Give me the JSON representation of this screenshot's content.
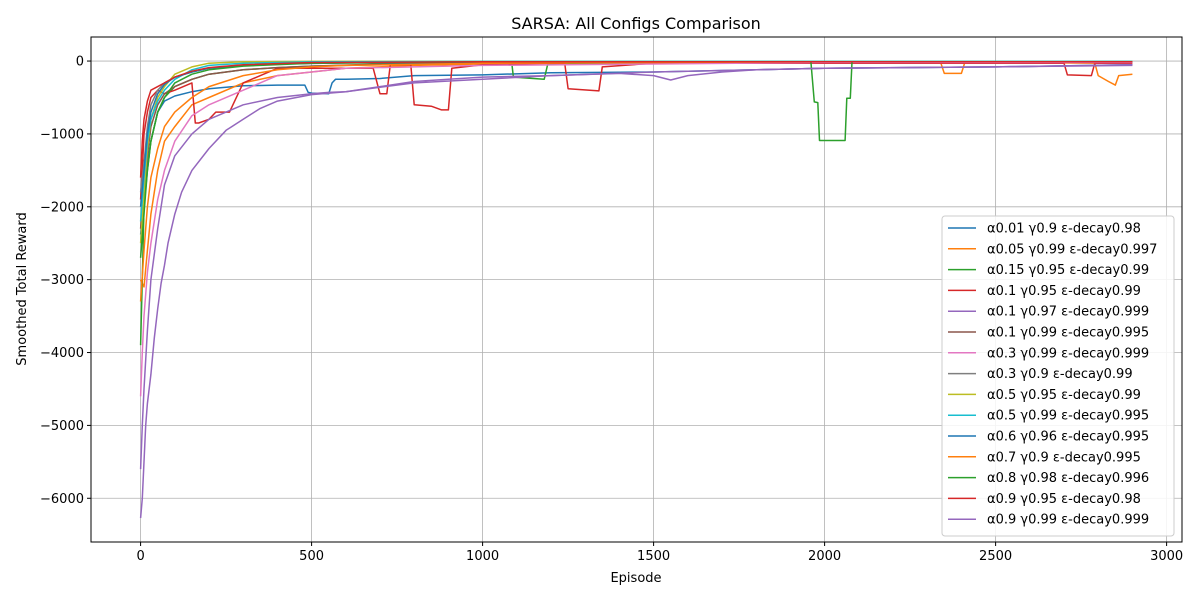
{
  "chart_data": {
    "type": "line",
    "title": "SARSA: All Configs Comparison",
    "xlabel": "Episode",
    "ylabel": "Smoothed Total Reward",
    "xlim": [
      -145,
      3045
    ],
    "ylim": [
      -6600,
      330
    ],
    "xticks": [
      0,
      500,
      1000,
      1500,
      2000,
      2500,
      3000
    ],
    "yticks": [
      -6000,
      -5000,
      -4000,
      -3000,
      -2000,
      -1000,
      0
    ],
    "xtick_labels": [
      "0",
      "500",
      "1000",
      "1500",
      "2000",
      "2500",
      "3000"
    ],
    "ytick_labels": [
      "−6000",
      "−5000",
      "−4000",
      "−3000",
      "−2000",
      "−1000",
      "0"
    ],
    "grid": true,
    "legend_position": "lower-right",
    "series": [
      {
        "name": "α0.01 γ0.9 ε-decay0.98",
        "color": "#1f77b4",
        "x": [
          0,
          5,
          10,
          20,
          30,
          50,
          70,
          100,
          150,
          200,
          300,
          400,
          480,
          490,
          500,
          550,
          560,
          570,
          600,
          700,
          800,
          1000,
          1200,
          1500,
          1800,
          2000,
          2500,
          2900
        ],
        "y": [
          -2380,
          -2200,
          -1900,
          -1400,
          -1100,
          -700,
          -550,
          -480,
          -420,
          -380,
          -340,
          -330,
          -330,
          -430,
          -440,
          -450,
          -300,
          -250,
          -250,
          -240,
          -200,
          -190,
          -160,
          -150,
          -120,
          -100,
          -80,
          -50
        ]
      },
      {
        "name": "α0.05 γ0.99 ε-decay0.997",
        "color": "#ff7f0e",
        "x": [
          0,
          10,
          20,
          30,
          50,
          70,
          100,
          150,
          200,
          300,
          400,
          500,
          600,
          800,
          1000,
          1500,
          2000,
          2340,
          2350,
          2400,
          2410,
          2500,
          2790,
          2800,
          2830,
          2850,
          2860,
          2900
        ],
        "y": [
          -3000,
          -3100,
          -2600,
          -2100,
          -1500,
          -1100,
          -900,
          -600,
          -500,
          -300,
          -200,
          -150,
          -100,
          -60,
          -40,
          -20,
          -30,
          -30,
          -170,
          -170,
          -20,
          -20,
          -30,
          -200,
          -280,
          -330,
          -200,
          -180
        ]
      },
      {
        "name": "α0.15 γ0.95 ε-decay0.99",
        "color": "#2ca02c",
        "x": [
          0,
          5,
          10,
          20,
          30,
          50,
          70,
          100,
          150,
          200,
          300,
          400,
          500,
          1000,
          1085,
          1090,
          1180,
          1190,
          1500,
          2000,
          2500,
          2900
        ],
        "y": [
          -3900,
          -3000,
          -2000,
          -1500,
          -1100,
          -700,
          -500,
          -350,
          -250,
          -180,
          -120,
          -90,
          -70,
          -20,
          -20,
          -220,
          -250,
          -50,
          -20,
          -10,
          -10,
          -10
        ]
      },
      {
        "name": "α0.1 γ0.95 ε-decay0.99",
        "color": "#d62728",
        "x": [
          0,
          5,
          10,
          20,
          30,
          50,
          70,
          100,
          150,
          160,
          170,
          200,
          220,
          260,
          300,
          400,
          600,
          680,
          700,
          720,
          730,
          790,
          800,
          850,
          880,
          900,
          910,
          1000,
          1200,
          1240,
          1250,
          1340,
          1350,
          1500,
          2000,
          2500,
          2700,
          2710,
          2780,
          2790,
          2900
        ],
        "y": [
          -1900,
          -1500,
          -1000,
          -700,
          -500,
          -400,
          -450,
          -400,
          -300,
          -850,
          -850,
          -800,
          -700,
          -700,
          -300,
          -100,
          -100,
          -100,
          -450,
          -450,
          -50,
          -50,
          -600,
          -620,
          -670,
          -670,
          -100,
          -50,
          -30,
          -30,
          -380,
          -410,
          -80,
          -30,
          -30,
          -30,
          -30,
          -190,
          -200,
          -30,
          -30
        ]
      },
      {
        "name": "α0.1 γ0.97 ε-decay0.999",
        "color": "#9467bd",
        "x": [
          0,
          5,
          10,
          20,
          30,
          50,
          70,
          100,
          150,
          200,
          300,
          400,
          500,
          550,
          600,
          700,
          800,
          900,
          1000,
          1200,
          1400,
          1500,
          1550,
          1600,
          1700,
          1800,
          2000,
          2200,
          2500,
          2700,
          2900
        ],
        "y": [
          -5600,
          -5000,
          -4500,
          -3700,
          -3000,
          -2300,
          -1700,
          -1300,
          -1000,
          -800,
          -600,
          -500,
          -450,
          -430,
          -420,
          -350,
          -280,
          -250,
          -220,
          -200,
          -170,
          -200,
          -260,
          -200,
          -150,
          -120,
          -100,
          -90,
          -80,
          -70,
          -60
        ]
      },
      {
        "name": "α0.1 γ0.99 ε-decay0.995",
        "color": "#8c564b",
        "x": [
          0,
          10,
          20,
          30,
          50,
          70,
          100,
          150,
          200,
          300,
          400,
          500,
          700,
          1000,
          1500,
          2000,
          2500,
          2900
        ],
        "y": [
          -2300,
          -1700,
          -1300,
          -900,
          -600,
          -450,
          -350,
          -250,
          -180,
          -120,
          -90,
          -70,
          -40,
          -20,
          -10,
          -10,
          -10,
          -10
        ]
      },
      {
        "name": "α0.3 γ0.99 ε-decay0.999",
        "color": "#e377c2",
        "x": [
          0,
          5,
          10,
          20,
          30,
          50,
          70,
          100,
          150,
          200,
          300,
          400,
          500,
          600,
          800,
          1000,
          1500,
          2000,
          2500,
          2900
        ],
        "y": [
          -4600,
          -4000,
          -3500,
          -2900,
          -2500,
          -1900,
          -1500,
          -1100,
          -750,
          -600,
          -400,
          -200,
          -150,
          -100,
          -80,
          -60,
          -40,
          -20,
          -20,
          -20
        ]
      },
      {
        "name": "α0.3 γ0.9 ε-decay0.99",
        "color": "#7f7f7f",
        "x": [
          0,
          10,
          20,
          30,
          50,
          70,
          100,
          150,
          200,
          300,
          400,
          500,
          700,
          1000,
          1500,
          2000,
          2500,
          2900
        ],
        "y": [
          -1800,
          -1400,
          -900,
          -600,
          -400,
          -300,
          -220,
          -150,
          -100,
          -60,
          -40,
          -30,
          -20,
          -10,
          -10,
          -10,
          -10,
          -10
        ]
      },
      {
        "name": "α0.5 γ0.95 ε-decay0.99",
        "color": "#bcbd22",
        "x": [
          0,
          10,
          20,
          30,
          50,
          70,
          100,
          150,
          200,
          300,
          500,
          1000,
          1500,
          2000,
          2500,
          2900
        ],
        "y": [
          -2500,
          -1800,
          -1200,
          -800,
          -500,
          -350,
          -180,
          -80,
          -30,
          -10,
          -5,
          -5,
          -5,
          -5,
          -5,
          -5
        ]
      },
      {
        "name": "α0.5 γ0.99 ε-decay0.995",
        "color": "#17becf",
        "x": [
          0,
          10,
          20,
          30,
          50,
          70,
          100,
          150,
          200,
          300,
          500,
          1000,
          1500,
          2000,
          2500,
          2900
        ],
        "y": [
          -2200,
          -1600,
          -1100,
          -800,
          -550,
          -400,
          -250,
          -120,
          -60,
          -30,
          -10,
          -5,
          -5,
          -5,
          -5,
          -5
        ]
      },
      {
        "name": "α0.6 γ0.96 ε-decay0.995",
        "color": "#1f77b4",
        "x": [
          0,
          10,
          20,
          30,
          50,
          70,
          100,
          150,
          200,
          300,
          400,
          600,
          1000,
          1500,
          2000,
          2500,
          2900
        ],
        "y": [
          -2000,
          -1500,
          -1000,
          -700,
          -450,
          -320,
          -220,
          -150,
          -100,
          -60,
          -40,
          -25,
          -15,
          -10,
          -10,
          -10,
          -10
        ]
      },
      {
        "name": "α0.7 γ0.9 ε-decay0.995",
        "color": "#ff7f0e",
        "x": [
          0,
          10,
          20,
          30,
          50,
          70,
          100,
          150,
          200,
          300,
          400,
          500,
          600,
          1000,
          1500,
          2000,
          2500,
          2900
        ],
        "y": [
          -3300,
          -2600,
          -2000,
          -1600,
          -1200,
          -900,
          -700,
          -500,
          -350,
          -200,
          -120,
          -80,
          -60,
          -30,
          -20,
          -10,
          -10,
          -10
        ]
      },
      {
        "name": "α0.8 γ0.98 ε-decay0.996",
        "color": "#2ca02c",
        "x": [
          0,
          10,
          20,
          30,
          50,
          70,
          100,
          150,
          200,
          300,
          500,
          1000,
          1500,
          1960,
          1970,
          1980,
          1985,
          2060,
          2065,
          2075,
          2080,
          2500,
          2900
        ],
        "y": [
          -2700,
          -2100,
          -1500,
          -1100,
          -700,
          -500,
          -300,
          -180,
          -120,
          -70,
          -30,
          -10,
          -10,
          -10,
          -560,
          -570,
          -1090,
          -1090,
          -510,
          -510,
          -10,
          -10,
          -10
        ]
      },
      {
        "name": "α0.9 γ0.95 ε-decay0.98",
        "color": "#d62728",
        "x": [
          0,
          5,
          10,
          20,
          30,
          50,
          70,
          100,
          150,
          200,
          300,
          500,
          1000,
          1500,
          2000,
          2500,
          2900
        ],
        "y": [
          -1600,
          -1100,
          -800,
          -550,
          -400,
          -350,
          -300,
          -220,
          -140,
          -90,
          -50,
          -20,
          -10,
          -10,
          -10,
          -10,
          -10
        ]
      },
      {
        "name": "α0.9 γ0.99 ε-decay0.999",
        "color": "#9467bd",
        "x": [
          0,
          5,
          10,
          15,
          20,
          30,
          40,
          50,
          60,
          70,
          80,
          100,
          120,
          150,
          200,
          250,
          300,
          350,
          400,
          500,
          600,
          800,
          1000,
          1200,
          1500,
          2000,
          2500,
          2900
        ],
        "y": [
          -6270,
          -6000,
          -5500,
          -5000,
          -4700,
          -4300,
          -3800,
          -3400,
          -3050,
          -2800,
          -2500,
          -2100,
          -1800,
          -1500,
          -1200,
          -950,
          -800,
          -650,
          -550,
          -460,
          -420,
          -300,
          -250,
          -200,
          -150,
          -100,
          -80,
          -50
        ]
      }
    ]
  }
}
